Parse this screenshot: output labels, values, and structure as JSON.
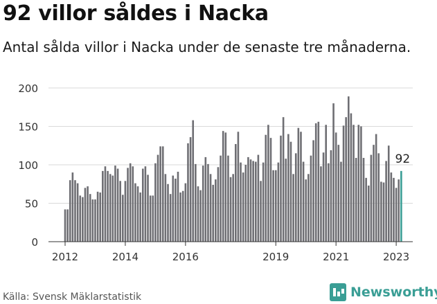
{
  "header": {
    "title": "92 villor såldes i Nacka",
    "subtitle": "Antal sålda villor i Nacka under de senaste tre månaderna."
  },
  "footer": {
    "source": "Källa: Svensk Mäklarstatistik",
    "brand": "Newsworthy"
  },
  "colors": {
    "bar": "#6e6e73",
    "highlight": "#3a9e95",
    "grid": "#d9d9d9"
  },
  "chart_data": {
    "type": "bar",
    "title": "",
    "xlabel": "",
    "ylabel": "",
    "ylim": [
      0,
      200
    ],
    "yticks": [
      0,
      50,
      100,
      150,
      200
    ],
    "grid": true,
    "xticks": [
      {
        "label": "2012",
        "index": 0
      },
      {
        "label": "2014",
        "index": 24
      },
      {
        "label": "2016",
        "index": 48
      },
      {
        "label": "2019",
        "index": 84
      },
      {
        "label": "2021",
        "index": 108
      },
      {
        "label": "2023",
        "index": 132
      }
    ],
    "values": [
      42,
      42,
      80,
      90,
      80,
      76,
      60,
      58,
      70,
      72,
      62,
      55,
      55,
      65,
      64,
      92,
      98,
      92,
      88,
      86,
      99,
      95,
      79,
      61,
      79,
      96,
      102,
      98,
      76,
      72,
      64,
      95,
      98,
      87,
      60,
      60,
      102,
      113,
      124,
      124,
      88,
      75,
      62,
      86,
      82,
      91,
      64,
      66,
      76,
      128,
      136,
      158,
      101,
      72,
      67,
      99,
      110,
      101,
      88,
      74,
      81,
      97,
      112,
      144,
      142,
      112,
      84,
      88,
      127,
      143,
      103,
      90,
      100,
      110,
      107,
      105,
      104,
      113,
      79,
      103,
      139,
      152,
      135,
      93,
      93,
      103,
      138,
      162,
      108,
      140,
      130,
      88,
      115,
      148,
      143,
      104,
      81,
      88,
      112,
      132,
      154,
      156,
      98,
      116,
      152,
      102,
      119,
      180,
      142,
      126,
      104,
      151,
      162,
      189,
      167,
      152,
      109,
      152,
      150,
      109,
      83,
      73,
      113,
      126,
      140,
      115,
      78,
      77,
      105,
      125,
      90,
      83,
      70,
      81,
      92
    ],
    "highlight_index": 134,
    "annotation": {
      "label": "92",
      "index": 134
    }
  }
}
